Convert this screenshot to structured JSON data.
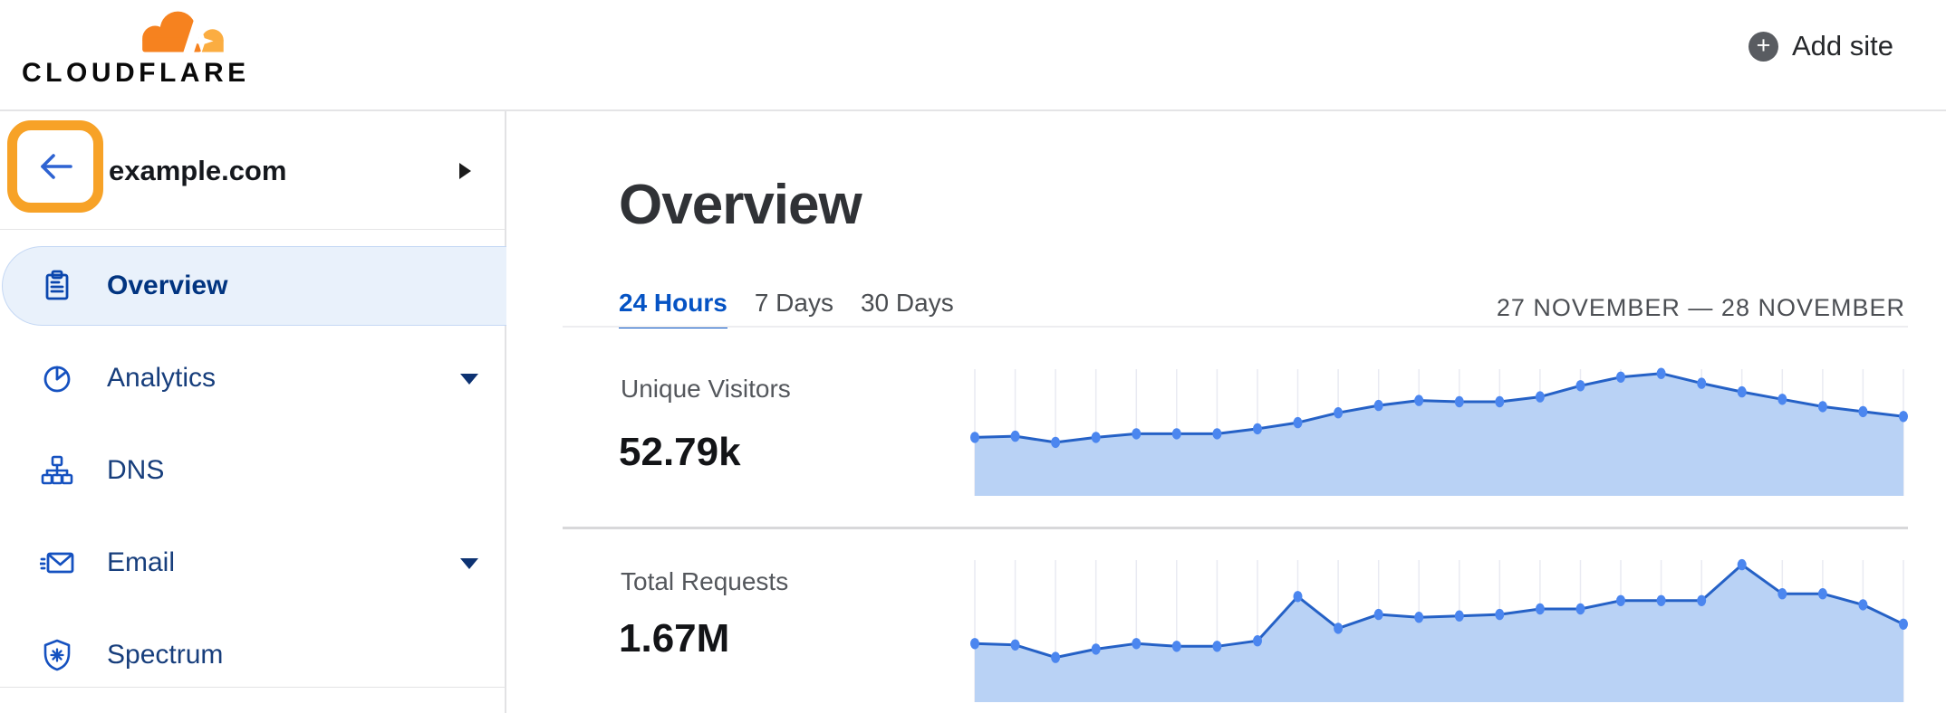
{
  "header": {
    "logo_text": "CLOUDFLARE",
    "add_site_label": "Add site"
  },
  "sidebar": {
    "site": {
      "name": "example.com"
    },
    "items": [
      {
        "label": "Overview",
        "icon": "clipboard-icon",
        "active": true,
        "expandable": false
      },
      {
        "label": "Analytics",
        "icon": "pie-chart-icon",
        "active": false,
        "expandable": true
      },
      {
        "label": "DNS",
        "icon": "hierarchy-icon",
        "active": false,
        "expandable": false
      },
      {
        "label": "Email",
        "icon": "envelope-icon",
        "active": false,
        "expandable": true
      },
      {
        "label": "Spectrum",
        "icon": "shield-asterisk-icon",
        "active": false,
        "expandable": false
      }
    ]
  },
  "main": {
    "title": "Overview",
    "tabs": [
      {
        "label": "24 Hours",
        "active": true
      },
      {
        "label": "7 Days",
        "active": false
      },
      {
        "label": "30 Days",
        "active": false
      }
    ],
    "date_range": "27 NOVEMBER — 28 NOVEMBER",
    "stats": [
      {
        "label": "Unique Visitors",
        "value": "52.79k"
      },
      {
        "label": "Total Requests",
        "value": "1.67M"
      }
    ]
  },
  "annotation": {
    "highlighted_element": "back-button",
    "highlight_color": "#f7a227"
  },
  "colors": {
    "accent_blue": "#0553c4",
    "nav_text_blue": "#173e7c",
    "icon_blue": "#1551c0",
    "logo_orange": "#f6821f",
    "logo_orange_light": "#fbad41",
    "back_arrow_blue": "#2e63d2"
  },
  "chart_data": [
    {
      "type": "area",
      "title": "Unique Visitors",
      "summary_value": "52.79k",
      "x_range": "24 hourly points, 27 November — 28 November",
      "ylabel": "",
      "values_relative_pct": [
        46,
        47,
        42,
        46,
        49,
        49,
        49,
        53,
        58,
        66,
        72,
        76,
        75,
        75,
        79,
        88,
        95,
        98,
        90,
        83,
        77,
        71,
        67,
        63
      ],
      "grid": true,
      "legend": false,
      "line_color": "#2561c6",
      "dot_color": "#4b86ef",
      "fill_color": "#b9d2f5",
      "grid_color": "#e9eaf2"
    },
    {
      "type": "area",
      "title": "Total Requests",
      "summary_value": "1.67M",
      "x_range": "24 hourly points, 27 November — 28 November",
      "ylabel": "",
      "values_relative_pct": [
        41,
        40,
        31,
        37,
        41,
        39,
        39,
        43,
        75,
        52,
        62,
        60,
        61,
        62,
        66,
        66,
        72,
        72,
        72,
        98,
        77,
        77,
        69,
        55
      ],
      "grid": true,
      "legend": false,
      "line_color": "#2561c6",
      "dot_color": "#4b86ef",
      "fill_color": "#b9d2f5",
      "grid_color": "#e9eaf2"
    }
  ]
}
